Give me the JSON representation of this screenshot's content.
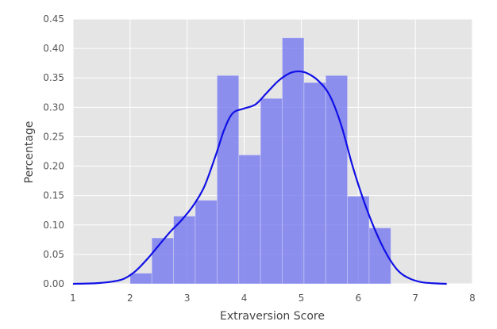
{
  "chart_data": {
    "type": "bar",
    "title": "",
    "xlabel": "Extraversion Score",
    "ylabel": "Percentage",
    "xlim": [
      1,
      8
    ],
    "ylim": [
      0,
      0.45
    ],
    "x_ticks": [
      "1",
      "2",
      "3",
      "4",
      "5",
      "6",
      "7",
      "8"
    ],
    "y_ticks": [
      "0.00",
      "0.05",
      "0.10",
      "0.15",
      "0.20",
      "0.25",
      "0.30",
      "0.35",
      "0.40",
      "0.45"
    ],
    "histogram": {
      "bin_edges": [
        2.0,
        2.381,
        2.762,
        3.143,
        3.524,
        3.905,
        4.286,
        4.667,
        5.048,
        5.429,
        5.81,
        6.19,
        6.571
      ],
      "values": [
        0.018,
        0.078,
        0.115,
        0.142,
        0.354,
        0.219,
        0.315,
        0.418,
        0.342,
        0.354,
        0.149,
        0.095
      ]
    },
    "kde": {
      "x": [
        1.0,
        1.4,
        1.7,
        1.9,
        2.1,
        2.3,
        2.5,
        2.7,
        2.9,
        3.1,
        3.3,
        3.5,
        3.65,
        3.8,
        4.0,
        4.2,
        4.4,
        4.6,
        4.8,
        4.95,
        5.1,
        5.3,
        5.5,
        5.7,
        5.9,
        6.1,
        6.3,
        6.5,
        6.7,
        6.9,
        7.1,
        7.3,
        7.55
      ],
      "y": [
        0.0,
        0.001,
        0.004,
        0.009,
        0.022,
        0.042,
        0.065,
        0.088,
        0.108,
        0.132,
        0.165,
        0.218,
        0.262,
        0.29,
        0.298,
        0.305,
        0.325,
        0.345,
        0.358,
        0.361,
        0.358,
        0.345,
        0.32,
        0.27,
        0.2,
        0.14,
        0.09,
        0.05,
        0.022,
        0.009,
        0.003,
        0.001,
        0.0
      ]
    },
    "grid": true,
    "colors": {
      "bars": "#6a6cf0",
      "kde_line": "#1010e6",
      "background": "#e5e5e5",
      "grid": "#ffffff"
    }
  }
}
